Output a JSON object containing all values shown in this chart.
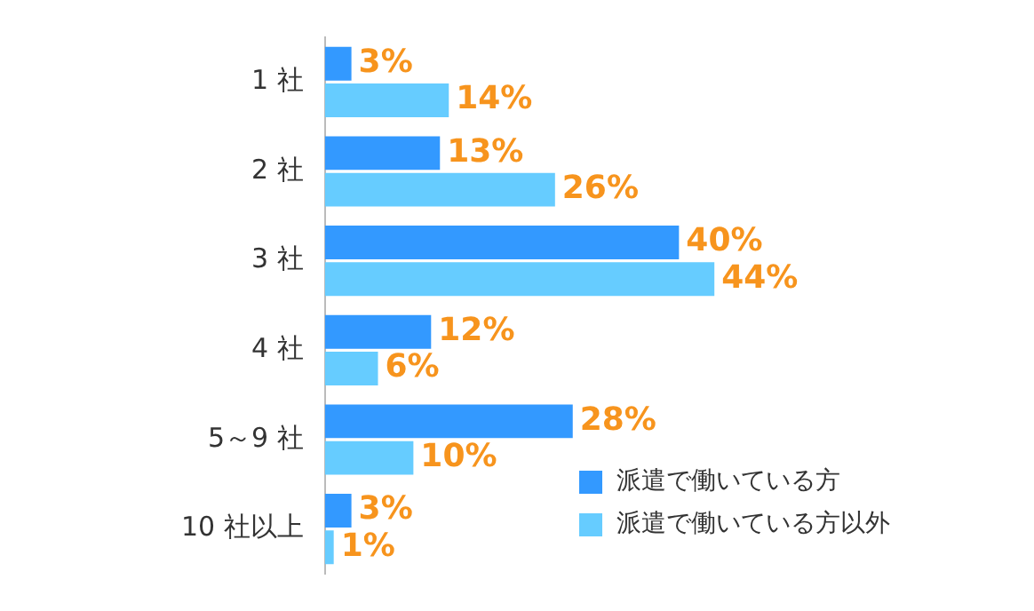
{
  "chart_data": {
    "type": "bar",
    "orientation": "horizontal",
    "categories": [
      "1 社",
      "2 社",
      "3 社",
      "4 社",
      "5～9 社",
      "10 社以上"
    ],
    "series": [
      {
        "name": "派遣で働いている方",
        "color": "#3399ff",
        "values": [
          3,
          13,
          40,
          12,
          28,
          3
        ],
        "value_labels": [
          "3%",
          "13%",
          "40%",
          "12%",
          "28%",
          "3%"
        ]
      },
      {
        "name": "派遣で働いている方以外",
        "color": "#66ccff",
        "values": [
          14,
          26,
          44,
          6,
          10,
          1
        ],
        "value_labels": [
          "14%",
          "26%",
          "44%",
          "6%",
          "10%",
          "1%"
        ]
      }
    ],
    "grid": false,
    "legend": "bottom right",
    "tick_labels": "y"
  }
}
